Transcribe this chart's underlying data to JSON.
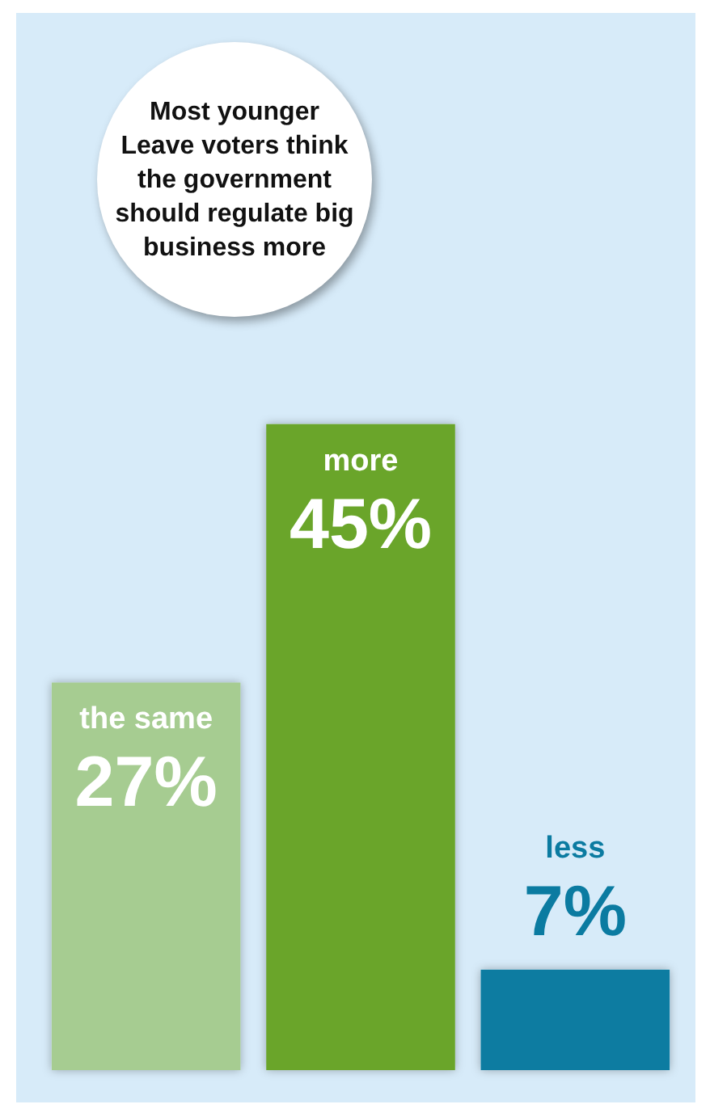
{
  "chart_data": {
    "type": "bar",
    "title": "Most younger Leave voters think the government should regulate big business more",
    "categories": [
      "the same",
      "more",
      "less"
    ],
    "values": [
      27,
      45,
      7
    ],
    "colors": [
      "#a6cc91",
      "#6aa52a",
      "#0b7ba1"
    ],
    "value_labels": [
      "27%",
      "45%",
      "7%"
    ],
    "data_labels": true
  }
}
